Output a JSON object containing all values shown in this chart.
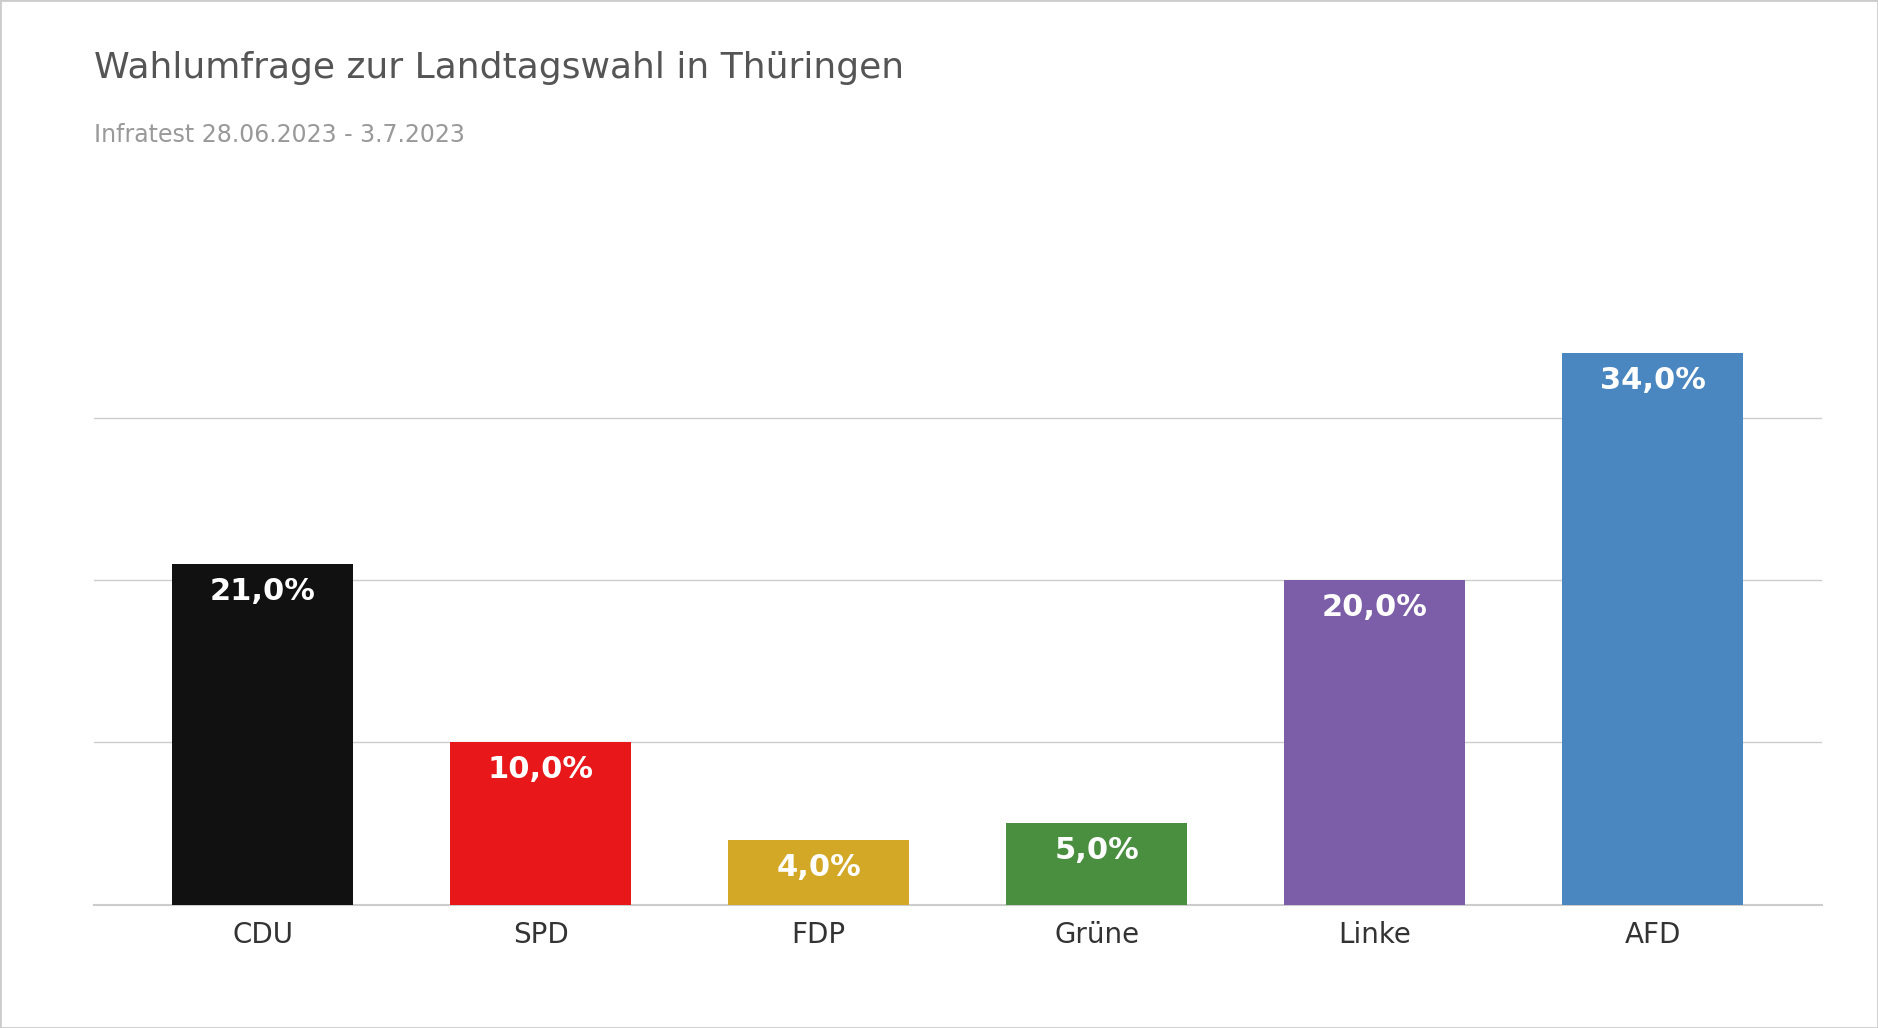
{
  "title": "Wahlumfrage zur Landtagswahl in Thüringen",
  "subtitle": "Infratest 28.06.2023 - 3.7.2023",
  "categories": [
    "CDU",
    "SPD",
    "FDP",
    "Grüne",
    "Linke",
    "AFD"
  ],
  "values": [
    21.0,
    10.0,
    4.0,
    5.0,
    20.0,
    34.0
  ],
  "labels": [
    "21,0%",
    "10,0%",
    "4,0%",
    "5,0%",
    "20,0%",
    "34,0%"
  ],
  "bar_colors": [
    "#111111",
    "#e8181a",
    "#d4a827",
    "#4a8f3f",
    "#7b5ea7",
    "#4a86c0"
  ],
  "background_color": "#ffffff",
  "title_color": "#555555",
  "subtitle_color": "#999999",
  "label_color": "#ffffff",
  "grid_color": "#cccccc",
  "border_color": "#cccccc",
  "tick_label_color": "#333333",
  "ylim": [
    0,
    38
  ],
  "yticks": [
    0,
    10,
    20,
    30
  ],
  "title_fontsize": 26,
  "subtitle_fontsize": 17,
  "label_fontsize": 22,
  "tick_fontsize": 20,
  "bar_width": 0.65
}
